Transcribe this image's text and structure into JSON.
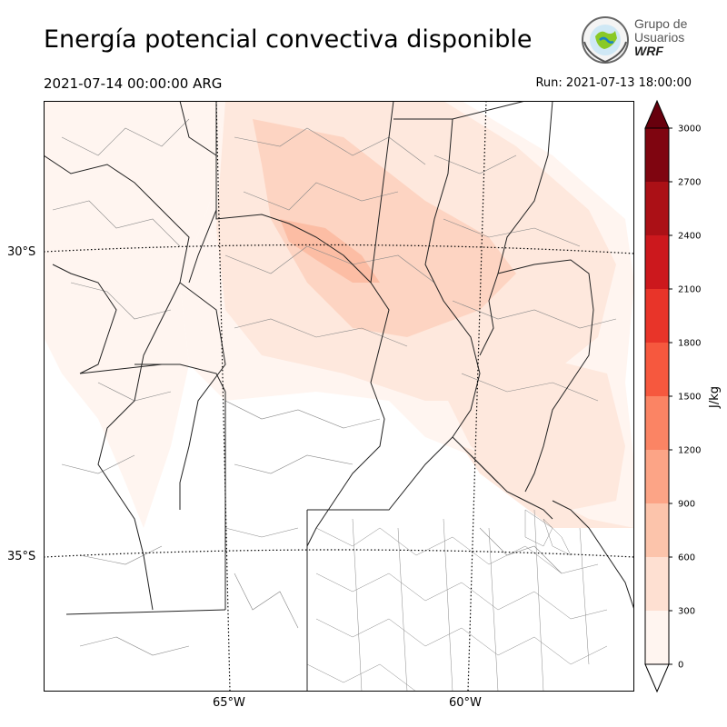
{
  "header": {
    "title": "Energía potencial convectiva disponible",
    "valid_time": "2021-07-14 00:00:00 ARG",
    "run": "Run: 2021-07-13 18:00:00"
  },
  "logo": {
    "line1": "Grupo de",
    "line2": "Usuarios",
    "line3": "WRF"
  },
  "map": {
    "lat_labels": [
      "30°S",
      "35°S"
    ],
    "lon_labels": [
      "65°W",
      "60°W"
    ],
    "field_colors": {
      "level0": "#fff5f0",
      "level1": "#fee8dd",
      "level2": "#fdd4c2",
      "level3": "#fcbda4"
    },
    "border_color": "#222222",
    "department_color": "#888888"
  },
  "colorbar": {
    "label": "J/kg",
    "ticks": [
      "0",
      "300",
      "600",
      "900",
      "1200",
      "1500",
      "1800",
      "2100",
      "2400",
      "2700",
      "3000"
    ],
    "colors": [
      "#fff5f0",
      "#fee0d2",
      "#fcc4ab",
      "#fca486",
      "#fb8464",
      "#f6583e",
      "#e83429",
      "#cc181d",
      "#ab1016",
      "#7f0510"
    ],
    "extend_min_color": "#ffffff",
    "extend_max_color": "#67000d"
  }
}
